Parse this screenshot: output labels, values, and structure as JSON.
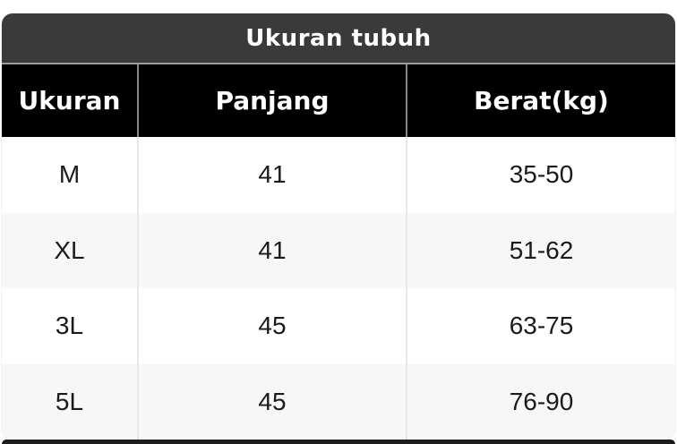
{
  "size_chart": {
    "title": "Ukuran tubuh",
    "columns": [
      "Ukuran",
      "Panjang",
      "Berat(kg)"
    ],
    "rows": [
      [
        "M",
        "41",
        "35-50"
      ],
      [
        "XL",
        "41",
        "51-62"
      ],
      [
        "3L",
        "45",
        "63-75"
      ],
      [
        "5L",
        "45",
        "76-90"
      ]
    ]
  },
  "chart_data": {
    "type": "table",
    "title": "Ukuran tubuh",
    "columns": [
      "Ukuran",
      "Panjang",
      "Berat(kg)"
    ],
    "rows": [
      [
        "M",
        "41",
        "35-50"
      ],
      [
        "XL",
        "41",
        "51-62"
      ],
      [
        "3L",
        "45",
        "63-75"
      ],
      [
        "5L",
        "45",
        "76-90"
      ]
    ]
  },
  "colors": {
    "page_bg": "#ffffff",
    "title_bar_bg": "#3a3a3a",
    "title_text": "#ffffff",
    "title_separator": "#9e9e9e",
    "header_bg": "#000000",
    "header_text": "#ffffff",
    "header_divider": "#858585",
    "row_bg": "#ffffff",
    "row_alt_bg": "#f7f7f7",
    "body_text": "#1a1a1a",
    "body_divider": "#e8e8e8",
    "bottom_strip": "#1c1c1c"
  }
}
